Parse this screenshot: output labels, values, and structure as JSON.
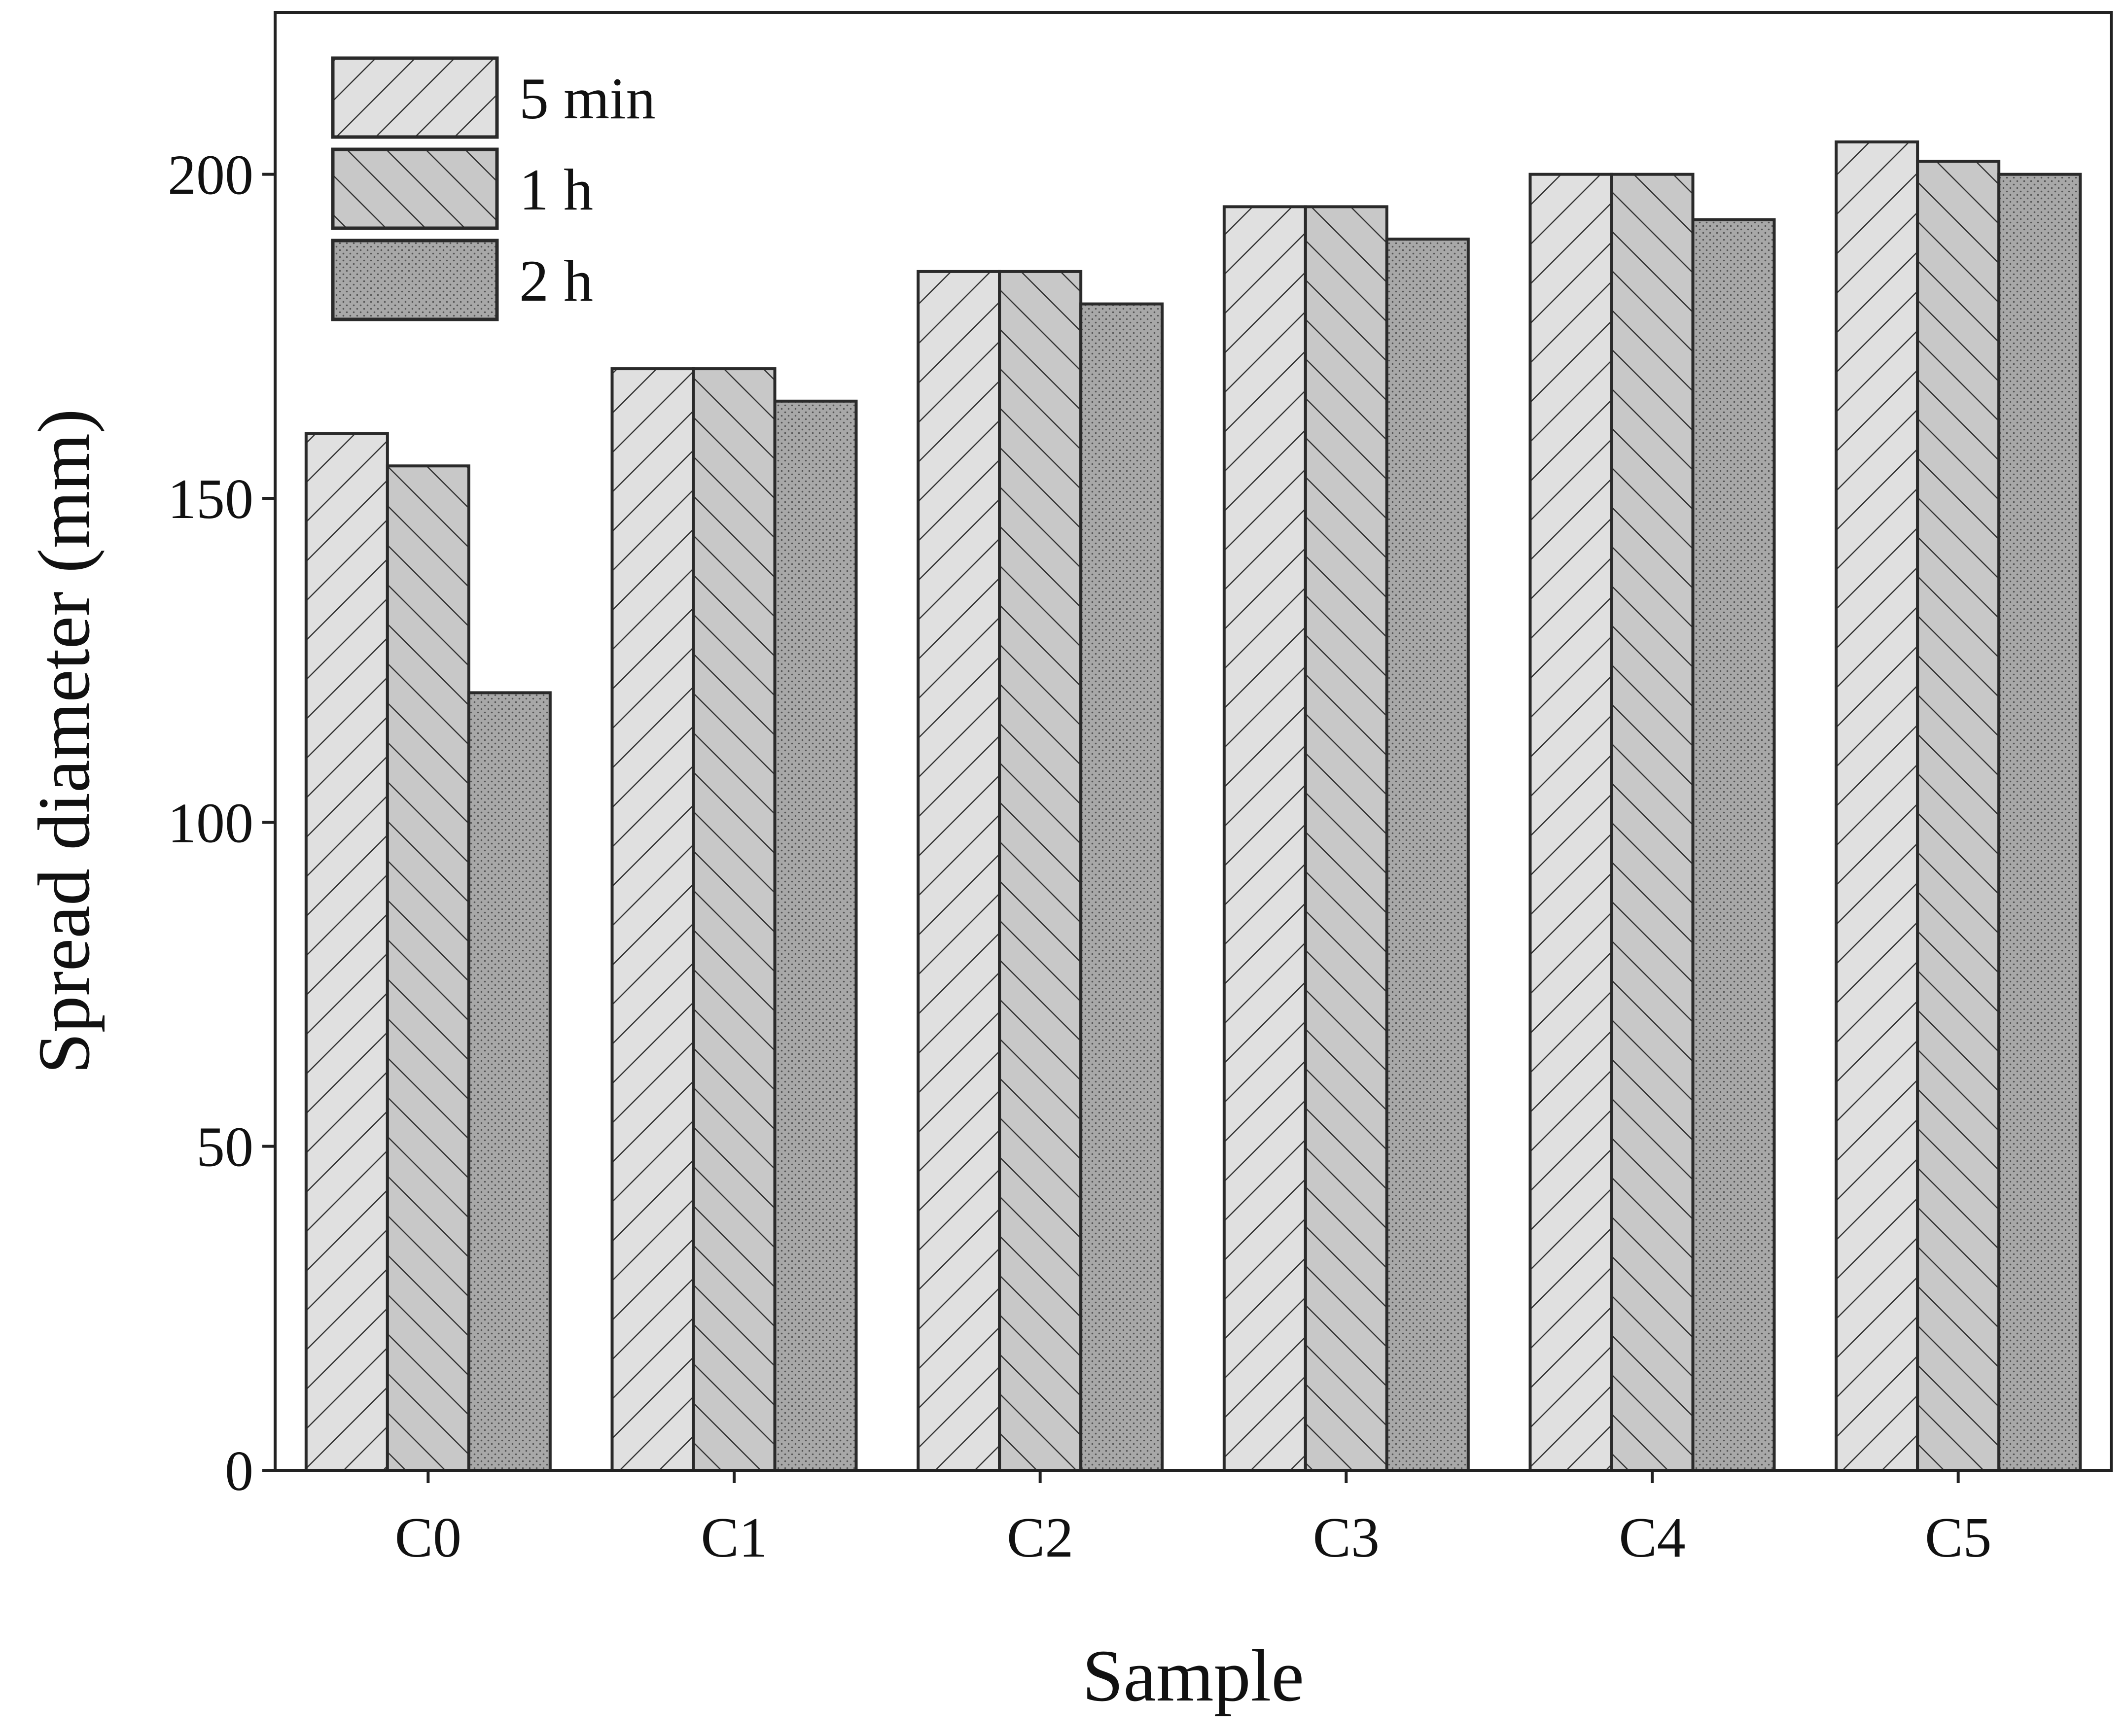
{
  "chart_data": {
    "type": "bar",
    "title": "",
    "xlabel": "Sample",
    "ylabel": "Spread diameter (mm)",
    "categories": [
      "C0",
      "C1",
      "C2",
      "C3",
      "C4",
      "C5"
    ],
    "ylim": [
      0,
      225
    ],
    "yticks": [
      0,
      50,
      100,
      150,
      200
    ],
    "legend_position": "top-left",
    "grid": false,
    "series": [
      {
        "name": "5 min",
        "pattern": "diagonal-forward",
        "color": "#e0e0e0",
        "values": [
          160,
          170,
          185,
          195,
          200,
          205
        ]
      },
      {
        "name": "1 h",
        "pattern": "diagonal-back",
        "color": "#c8c8c8",
        "values": [
          155,
          170,
          185,
          195,
          200,
          202
        ]
      },
      {
        "name": "2 h",
        "pattern": "dots",
        "color": "#a8a8a8",
        "values": [
          120,
          165,
          180,
          190,
          193,
          200
        ]
      }
    ]
  }
}
